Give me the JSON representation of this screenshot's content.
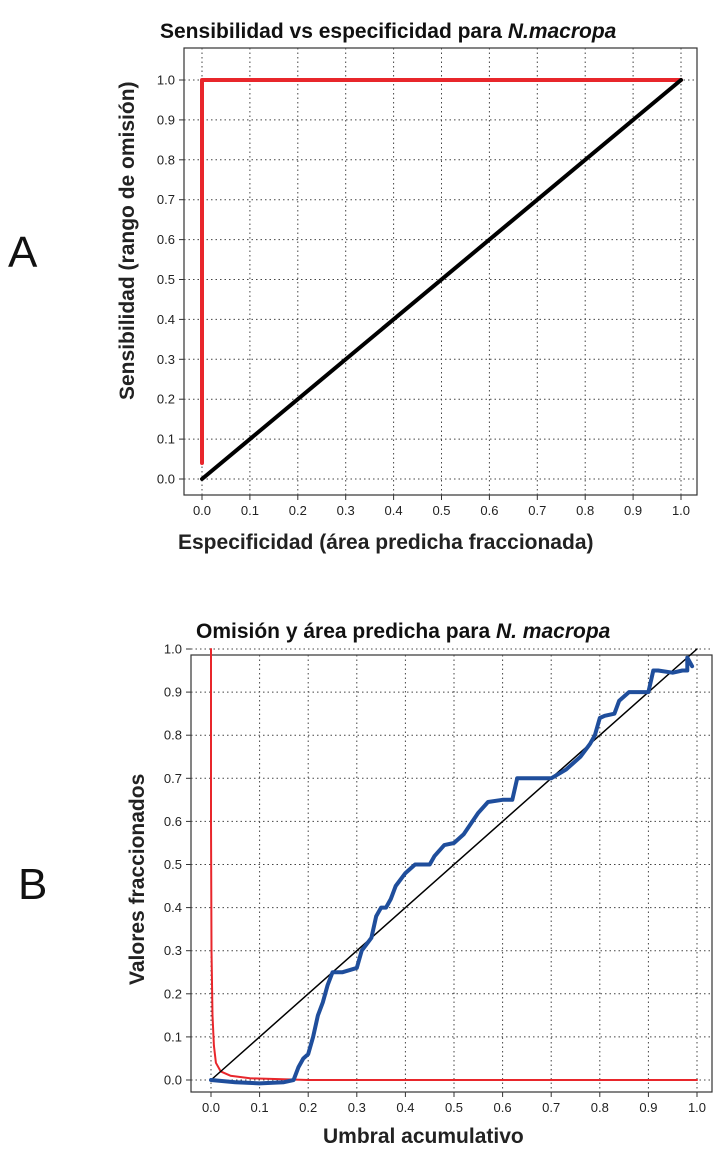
{
  "panels": {
    "a": "A",
    "b": "B"
  },
  "chart_data": [
    {
      "type": "line",
      "title": "Sensibilidad vs especificidad para ",
      "title_italic": "N.macropa",
      "xlabel": "Especificidad (área predicha fraccionada)",
      "ylabel": "Sensibilidad (rango de omisión)",
      "xlim": [
        0,
        1
      ],
      "ylim": [
        0,
        1
      ],
      "grid": true,
      "x_ticks": [
        "0.0",
        "0.1",
        "0.2",
        "0.3",
        "0.4",
        "0.5",
        "0.6",
        "0.7",
        "0.8",
        "0.9",
        "1.0"
      ],
      "y_ticks": [
        "0.0",
        "0.1",
        "0.2",
        "0.3",
        "0.4",
        "0.5",
        "0.6",
        "0.7",
        "0.8",
        "0.9",
        "1.0"
      ],
      "series": [
        {
          "color": "#e8262b",
          "width": 4,
          "x": [
            0.0,
            0.0,
            1.0
          ],
          "y": [
            0.04,
            1.0,
            1.0
          ]
        },
        {
          "color": "#000000",
          "width": 4,
          "x": [
            0.0,
            1.0
          ],
          "y": [
            0.0,
            1.0
          ]
        }
      ]
    },
    {
      "type": "line",
      "title": "Omisión y área predicha para ",
      "title_italic": "N. macropa",
      "xlabel": "Umbral acumulativo",
      "ylabel": "Valores fraccionados",
      "xlim": [
        0,
        1
      ],
      "ylim": [
        0,
        1
      ],
      "grid": true,
      "x_ticks": [
        "0.0",
        "0.1",
        "0.2",
        "0.3",
        "0.4",
        "0.5",
        "0.6",
        "0.7",
        "0.8",
        "0.9",
        "1.0"
      ],
      "y_ticks": [
        "0.0",
        "0.1",
        "0.2",
        "0.3",
        "0.4",
        "0.5",
        "0.6",
        "0.7",
        "0.8",
        "0.9",
        "1.0"
      ],
      "series": [
        {
          "color": "#e8262b",
          "width": 2,
          "x": [
            0.0,
            0.0,
            0.001,
            0.003,
            0.006,
            0.01,
            0.02,
            0.04,
            0.08,
            0.2,
            1.0
          ],
          "y": [
            1.0,
            0.6,
            0.3,
            0.15,
            0.08,
            0.04,
            0.02,
            0.01,
            0.004,
            0.0,
            0.0
          ]
        },
        {
          "color": "#000000",
          "width": 1.5,
          "x": [
            0.0,
            1.0
          ],
          "y": [
            0.0,
            1.0
          ]
        },
        {
          "color": "#1f4e9c",
          "width": 4,
          "x": [
            0.0,
            0.05,
            0.1,
            0.15,
            0.17,
            0.18,
            0.19,
            0.2,
            0.21,
            0.22,
            0.23,
            0.24,
            0.25,
            0.27,
            0.3,
            0.31,
            0.33,
            0.34,
            0.35,
            0.36,
            0.37,
            0.38,
            0.4,
            0.42,
            0.45,
            0.46,
            0.48,
            0.5,
            0.52,
            0.55,
            0.57,
            0.6,
            0.62,
            0.63,
            0.66,
            0.7,
            0.73,
            0.76,
            0.78,
            0.79,
            0.8,
            0.81,
            0.83,
            0.84,
            0.86,
            0.9,
            0.91,
            0.92,
            0.95,
            0.97,
            0.98,
            0.98,
            0.99
          ],
          "y": [
            0.0,
            -0.005,
            -0.008,
            -0.005,
            0.0,
            0.03,
            0.05,
            0.06,
            0.1,
            0.15,
            0.18,
            0.22,
            0.25,
            0.25,
            0.26,
            0.3,
            0.33,
            0.38,
            0.4,
            0.4,
            0.42,
            0.45,
            0.48,
            0.5,
            0.5,
            0.52,
            0.545,
            0.55,
            0.57,
            0.62,
            0.645,
            0.65,
            0.65,
            0.7,
            0.7,
            0.7,
            0.72,
            0.75,
            0.78,
            0.8,
            0.84,
            0.845,
            0.85,
            0.88,
            0.9,
            0.9,
            0.95,
            0.95,
            0.945,
            0.95,
            0.95,
            0.98,
            0.96
          ]
        }
      ]
    }
  ]
}
